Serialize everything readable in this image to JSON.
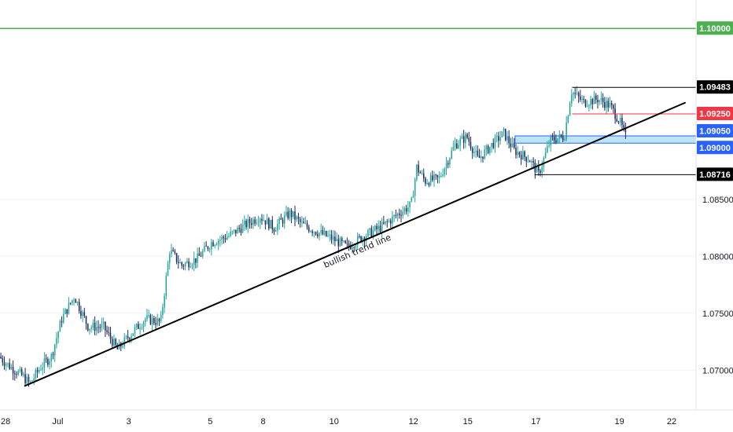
{
  "chart_data": {
    "type": "candlestick",
    "title": "",
    "ylim": [
      1.0665,
      1.1025
    ],
    "price_axis_ticks": [
      "1.07000",
      "1.07500",
      "1.08000",
      "1.08500"
    ],
    "time_axis_ticks": [
      "28",
      "Jul",
      "3",
      "5",
      "8",
      "10",
      "12",
      "15",
      "17",
      "19",
      "22"
    ],
    "trend_line": {
      "label": "bullish trend line",
      "start": {
        "x": "Jun 28",
        "y": 1.0686
      },
      "end": {
        "x": "Jul 19 (projected)",
        "y": 1.0935
      }
    },
    "horizontal_levels": [
      {
        "name": "target",
        "value": 1.1,
        "label": "1.10000",
        "color": "#4caf50"
      },
      {
        "name": "recent-high",
        "value": 1.09483,
        "label": "1.09483",
        "color": "#000000"
      },
      {
        "name": "resistance",
        "value": 1.0925,
        "label": "1.09250",
        "color": "#f23645"
      },
      {
        "name": "zone-top",
        "value": 1.0905,
        "label": "1.09050",
        "color": "#2962ff"
      },
      {
        "name": "zone-bottom",
        "value": 1.09,
        "label": "1.09000",
        "color": "#2962ff"
      },
      {
        "name": "swing-low",
        "value": 1.08716,
        "label": "1.08716",
        "color": "#000000"
      }
    ],
    "support_zone": {
      "from": 1.09,
      "to": 1.0905,
      "color": "#87ceeb"
    },
    "price_path": [
      {
        "x": 0,
        "y": 1.0712
      },
      {
        "x": 0.012,
        "y": 1.0705
      },
      {
        "x": 0.035,
        "y": 1.0694
      },
      {
        "x": 0.044,
        "y": 1.0688
      },
      {
        "x": 0.06,
        "y": 1.0703
      },
      {
        "x": 0.075,
        "y": 1.0712
      },
      {
        "x": 0.09,
        "y": 1.0745
      },
      {
        "x": 0.108,
        "y": 1.0765
      },
      {
        "x": 0.128,
        "y": 1.0738
      },
      {
        "x": 0.15,
        "y": 1.0738
      },
      {
        "x": 0.17,
        "y": 1.0718
      },
      {
        "x": 0.188,
        "y": 1.0731
      },
      {
        "x": 0.21,
        "y": 1.0745
      },
      {
        "x": 0.232,
        "y": 1.0742
      },
      {
        "x": 0.245,
        "y": 1.0805
      },
      {
        "x": 0.262,
        "y": 1.0792
      },
      {
        "x": 0.285,
        "y": 1.0798
      },
      {
        "x": 0.305,
        "y": 1.0812
      },
      {
        "x": 0.33,
        "y": 1.0818
      },
      {
        "x": 0.355,
        "y": 1.0828
      },
      {
        "x": 0.375,
        "y": 1.0835
      },
      {
        "x": 0.395,
        "y": 1.0825
      },
      {
        "x": 0.418,
        "y": 1.0838
      },
      {
        "x": 0.435,
        "y": 1.0828
      },
      {
        "x": 0.455,
        "y": 1.0822
      },
      {
        "x": 0.48,
        "y": 1.0815
      },
      {
        "x": 0.5,
        "y": 1.0808
      },
      {
        "x": 0.525,
        "y": 1.0818
      },
      {
        "x": 0.55,
        "y": 1.0826
      },
      {
        "x": 0.575,
        "y": 1.0838
      },
      {
        "x": 0.592,
        "y": 1.0845
      },
      {
        "x": 0.6,
        "y": 1.0878
      },
      {
        "x": 0.612,
        "y": 1.0866
      },
      {
        "x": 0.632,
        "y": 1.0868
      },
      {
        "x": 0.655,
        "y": 1.0898
      },
      {
        "x": 0.672,
        "y": 1.0905
      },
      {
        "x": 0.688,
        "y": 1.0885
      },
      {
        "x": 0.708,
        "y": 1.0898
      },
      {
        "x": 0.725,
        "y": 1.0908
      },
      {
        "x": 0.74,
        "y": 1.0893
      },
      {
        "x": 0.762,
        "y": 1.0885
      },
      {
        "x": 0.775,
        "y": 1.0872
      },
      {
        "x": 0.792,
        "y": 1.0902
      },
      {
        "x": 0.812,
        "y": 1.0905
      },
      {
        "x": 0.822,
        "y": 1.0945
      },
      {
        "x": 0.84,
        "y": 1.0935
      },
      {
        "x": 0.86,
        "y": 1.0938
      },
      {
        "x": 0.878,
        "y": 1.0932
      },
      {
        "x": 0.892,
        "y": 1.0918
      },
      {
        "x": 0.9,
        "y": 1.0905
      }
    ],
    "colors": {
      "up": "#26a69a",
      "down": "#1e2a5e",
      "trend_line": "#000000",
      "grid": "#e0e3eb"
    }
  }
}
